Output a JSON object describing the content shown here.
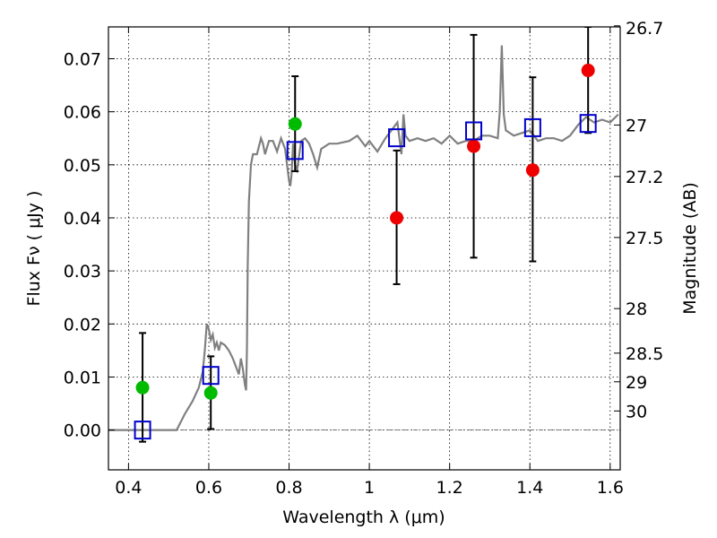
{
  "chart_data": {
    "type": "scatter",
    "xlabel": "Wavelength  λ (μm)",
    "ylabel": "Flux  Fν  ( μJy )",
    "y2label": "Magnitude (AB)",
    "xlim": [
      0.35,
      1.625
    ],
    "ylim": [
      -0.0075,
      0.076
    ],
    "grid": true,
    "x_ticks": [
      {
        "value": 0.4,
        "label": "0.4"
      },
      {
        "value": 0.6,
        "label": "0.6"
      },
      {
        "value": 0.8,
        "label": "0.8"
      },
      {
        "value": 1.0,
        "label": "1"
      },
      {
        "value": 1.2,
        "label": "1.2"
      },
      {
        "value": 1.4,
        "label": "1.4"
      },
      {
        "value": 1.6,
        "label": "1.6"
      }
    ],
    "y_ticks": [
      {
        "value": 0.0,
        "label": "0.00"
      },
      {
        "value": 0.01,
        "label": "0.01"
      },
      {
        "value": 0.02,
        "label": "0.02"
      },
      {
        "value": 0.03,
        "label": "0.03"
      },
      {
        "value": 0.04,
        "label": "0.04"
      },
      {
        "value": 0.05,
        "label": "0.05"
      },
      {
        "value": 0.06,
        "label": "0.06"
      },
      {
        "value": 0.07,
        "label": "0.07"
      }
    ],
    "mag_ticks": [
      {
        "flux": 0.0762,
        "label": "26.7"
      },
      {
        "flux": 0.0575,
        "label": "27"
      },
      {
        "flux": 0.0478,
        "label": "27.2"
      },
      {
        "flux": 0.0363,
        "label": "27.5"
      },
      {
        "flux": 0.0229,
        "label": "28"
      },
      {
        "flux": 0.0145,
        "label": "28.5"
      },
      {
        "flux": 0.0091,
        "label": "29"
      },
      {
        "flux": 0.0036,
        "label": "30"
      }
    ],
    "colors": {
      "template": "#808080",
      "model_box": "#0000cc",
      "detection": "#00bb00",
      "nir_point": "#ee0000",
      "errorbar": "#000000"
    },
    "template_spectrum": {
      "name": "",
      "x": [
        0.35,
        0.51,
        0.52,
        0.54,
        0.56,
        0.575,
        0.585,
        0.59,
        0.595,
        0.6,
        0.605,
        0.61,
        0.615,
        0.62,
        0.625,
        0.63,
        0.64,
        0.65,
        0.66,
        0.67,
        0.675,
        0.68,
        0.685,
        0.69,
        0.693,
        0.695,
        0.697,
        0.7,
        0.705,
        0.71,
        0.72,
        0.73,
        0.735,
        0.74,
        0.75,
        0.76,
        0.77,
        0.78,
        0.79,
        0.8,
        0.803,
        0.806,
        0.81,
        0.815,
        0.82,
        0.83,
        0.84,
        0.85,
        0.86,
        0.87,
        0.88,
        0.9,
        0.92,
        0.95,
        0.97,
        0.99,
        1.0,
        1.02,
        1.04,
        1.06,
        1.07,
        1.08,
        1.085,
        1.09,
        1.1,
        1.12,
        1.14,
        1.16,
        1.18,
        1.2,
        1.22,
        1.24,
        1.26,
        1.28,
        1.3,
        1.32,
        1.325,
        1.33,
        1.335,
        1.34,
        1.36,
        1.38,
        1.4,
        1.42,
        1.44,
        1.46,
        1.48,
        1.5,
        1.52,
        1.54,
        1.56,
        1.58,
        1.6,
        1.62
      ],
      "y": [
        0.0,
        0.0,
        0.0,
        0.003,
        0.0055,
        0.008,
        0.011,
        0.015,
        0.02,
        0.019,
        0.017,
        0.018,
        0.0155,
        0.0165,
        0.015,
        0.0165,
        0.016,
        0.015,
        0.0135,
        0.0115,
        0.0105,
        0.0135,
        0.0115,
        0.0085,
        0.0075,
        0.015,
        0.031,
        0.043,
        0.05,
        0.052,
        0.052,
        0.055,
        0.054,
        0.052,
        0.0545,
        0.0545,
        0.0525,
        0.055,
        0.053,
        0.047,
        0.046,
        0.048,
        0.054,
        0.05,
        0.049,
        0.0545,
        0.055,
        0.054,
        0.052,
        0.0495,
        0.053,
        0.054,
        0.054,
        0.0545,
        0.0555,
        0.0535,
        0.0545,
        0.0525,
        0.055,
        0.057,
        0.058,
        0.052,
        0.0595,
        0.0555,
        0.0545,
        0.055,
        0.0545,
        0.055,
        0.054,
        0.0555,
        0.054,
        0.0545,
        0.0545,
        0.0555,
        0.0555,
        0.055,
        0.06,
        0.0725,
        0.0595,
        0.0565,
        0.0555,
        0.056,
        0.0565,
        0.0545,
        0.055,
        0.055,
        0.0545,
        0.0555,
        0.0575,
        0.059,
        0.058,
        0.0585,
        0.058,
        0.0595
      ]
    },
    "model_boxes": {
      "name": "",
      "x": [
        0.435,
        0.605,
        0.815,
        1.068,
        1.26,
        1.407,
        1.545
      ],
      "y": [
        0.0,
        0.0103,
        0.0527,
        0.0551,
        0.0564,
        0.057,
        0.0578
      ]
    },
    "detections": {
      "name": "",
      "x": [
        0.435,
        0.605,
        0.815
      ],
      "y": [
        0.008,
        0.007,
        0.0577
      ]
    },
    "nir_points": {
      "name": "",
      "x": [
        1.068,
        1.26,
        1.407,
        1.545
      ],
      "y": [
        0.04,
        0.0535,
        0.049,
        0.0678
      ]
    },
    "error_bars": [
      {
        "x": 0.435,
        "low": -0.0022,
        "high": 0.0183
      },
      {
        "x": 0.605,
        "low": 0.0002,
        "high": 0.0139
      },
      {
        "x": 0.815,
        "low": 0.0488,
        "high": 0.0667
      },
      {
        "x": 1.068,
        "low": 0.0275,
        "high": 0.0527
      },
      {
        "x": 1.26,
        "low": 0.0325,
        "high": 0.0745
      },
      {
        "x": 1.407,
        "low": 0.0318,
        "high": 0.0665
      },
      {
        "x": 1.545,
        "low": 0.056,
        "high": 0.076
      }
    ]
  }
}
